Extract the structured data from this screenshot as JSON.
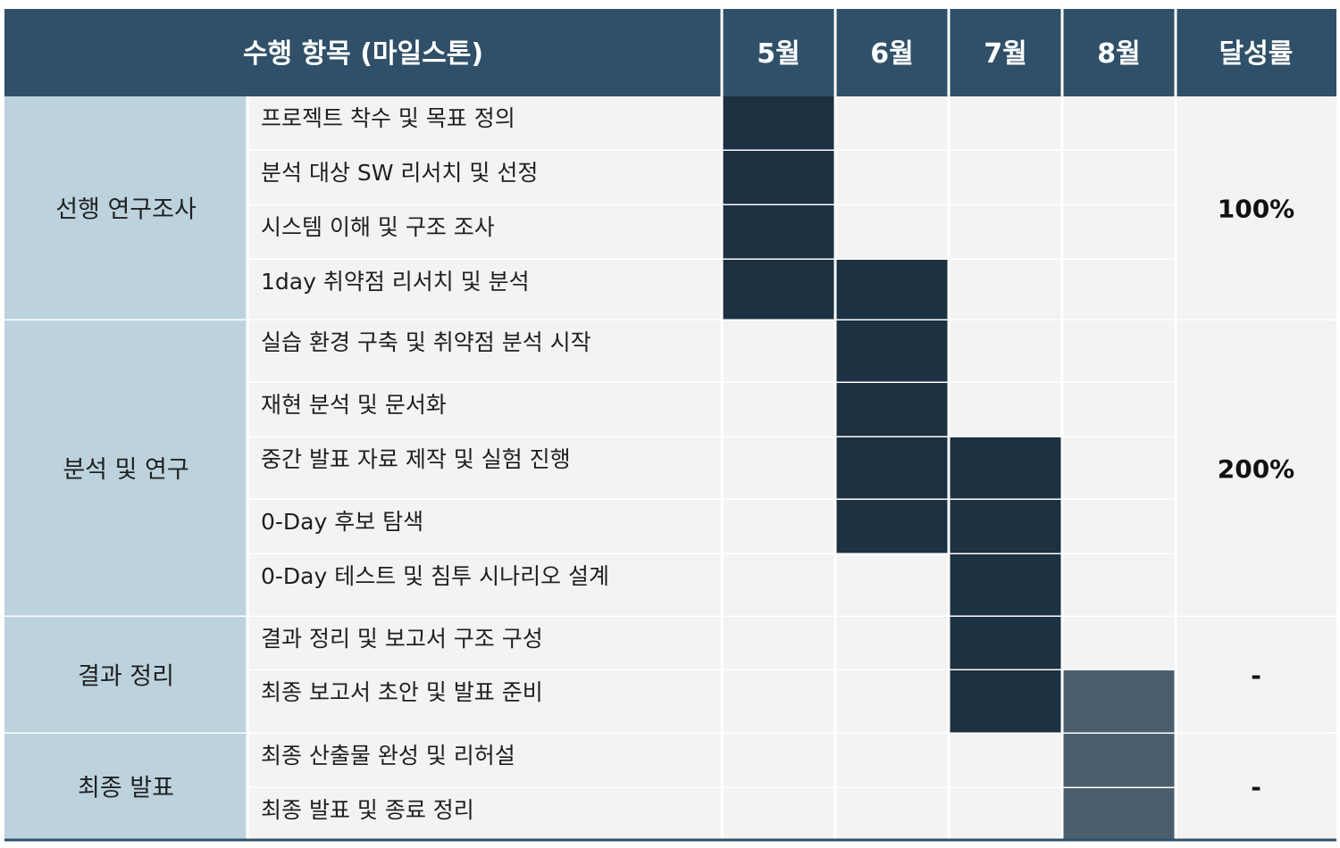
{
  "header": {
    "item_label": "수행 항목 (마일스톤)",
    "months": [
      "5월",
      "6월",
      "7월",
      "8월"
    ],
    "rate_label": "달성률"
  },
  "colors": {
    "header_bg": "#2f5068",
    "phase_bg": "#bcd3de",
    "cell_bg": "#f3f3f3",
    "bar_dark": "#1c3142",
    "bar_mid": "#4a5f6e"
  },
  "phases": [
    {
      "name": "선행 연구조사",
      "rate": "100%",
      "tasks": [
        {
          "label": "프로젝트 착수 및 목표 정의",
          "months": [
            0
          ],
          "shade": "dark"
        },
        {
          "label": "분석 대상 SW 리서치 및 선정",
          "months": [
            0
          ],
          "shade": "dark"
        },
        {
          "label": "시스템 이해 및 구조 조사",
          "months": [
            0
          ],
          "shade": "dark"
        },
        {
          "label": "1day 취약점 리서치 및 분석",
          "months": [
            0,
            1
          ],
          "shade": "dark"
        }
      ]
    },
    {
      "name": "분석 및 연구",
      "rate": "200%",
      "tasks": [
        {
          "label": "실습 환경 구축 및 취약점 분석 시작",
          "months": [
            1
          ],
          "shade": "dark"
        },
        {
          "label": "재현 분석 및 문서화",
          "months": [
            1
          ],
          "shade": "dark"
        },
        {
          "label": "중간 발표 자료 제작 및 실험 진행",
          "months": [
            1,
            2
          ],
          "shade": "dark"
        },
        {
          "label": "0-Day 후보 탐색",
          "months": [
            1,
            2
          ],
          "shade": "dark"
        },
        {
          "label": "0-Day 테스트 및 침투 시나리오 설계",
          "months": [
            2
          ],
          "shade": "dark"
        }
      ]
    },
    {
      "name": "결과 정리",
      "rate": "-",
      "tasks": [
        {
          "label": "결과 정리 및 보고서 구조 구성",
          "months": [
            2
          ],
          "shade": "dark"
        },
        {
          "label": "최종 보고서 초안 및 발표 준비",
          "months": [
            2
          ],
          "shade": "dark",
          "mid_months": [
            3
          ]
        }
      ]
    },
    {
      "name": "최종 발표",
      "rate": "-",
      "tasks": [
        {
          "label": "최종 산출물 완성 및 리허설",
          "months": [],
          "mid_months": [
            3
          ]
        },
        {
          "label": "최종 발표 및 종료 정리",
          "months": [],
          "mid_months": [
            3
          ]
        }
      ]
    }
  ]
}
